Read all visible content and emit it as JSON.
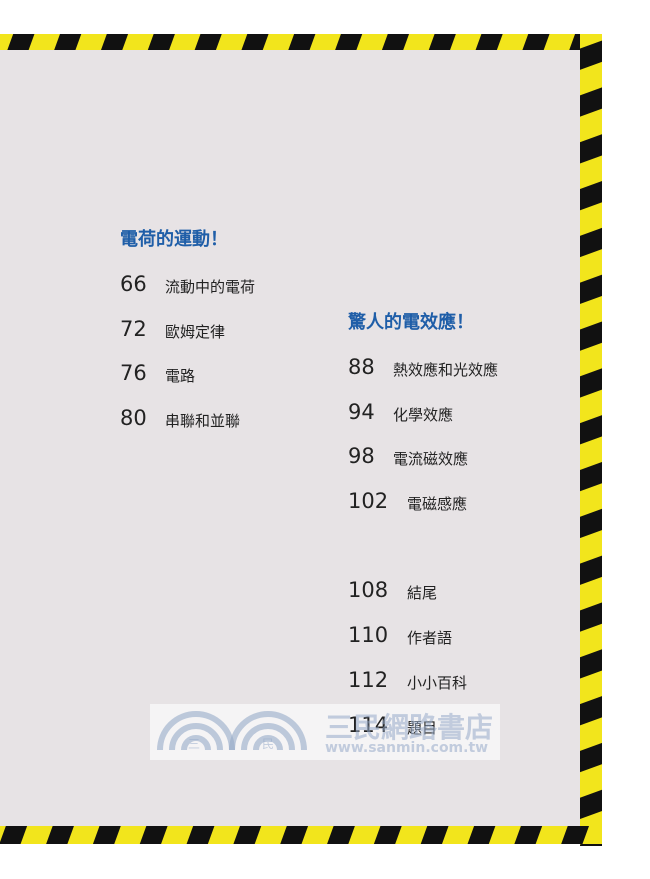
{
  "toc": {
    "sections": [
      {
        "title": "電荷的運動！",
        "items": [
          {
            "page": 66,
            "title": "流動中的電荷"
          },
          {
            "page": 72,
            "title": "歐姆定律"
          },
          {
            "page": 76,
            "title": "電路"
          },
          {
            "page": 80,
            "title": "串聯和並聯"
          }
        ]
      },
      {
        "title": "驚人的電效應！",
        "items": [
          {
            "page": 88,
            "title": "熱效應和光效應"
          },
          {
            "page": 94,
            "title": "化學效應"
          },
          {
            "page": 98,
            "title": "電流磁效應"
          },
          {
            "page": 102,
            "title": "電磁感應"
          }
        ]
      }
    ],
    "end_items": [
      {
        "page": 108,
        "title": "結尾"
      },
      {
        "page": 110,
        "title": "作者語"
      },
      {
        "page": 112,
        "title": "小小百科"
      },
      {
        "page": 114,
        "title": "題目"
      }
    ]
  },
  "watermark": {
    "logo_left": "三",
    "logo_right": "民",
    "name": "三民網路書店",
    "url": "www.sanmin.com.tw"
  }
}
